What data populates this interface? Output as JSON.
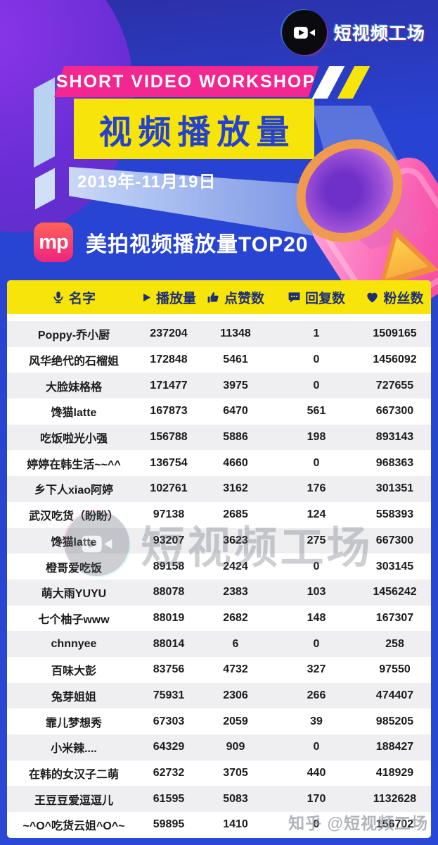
{
  "brand": {
    "name": "短视频工场",
    "logo_icon": "video-camera-icon"
  },
  "header": {
    "banner": "SHORT VIDEO WORKSHOP",
    "title": "视频播放量",
    "date": "2019年-11月19日"
  },
  "section": {
    "logo_text": "mp",
    "title": "美拍视频播放量TOP20"
  },
  "colors": {
    "background_blue": "#2746d0",
    "banner_pink": "#f2278f",
    "accent_yellow": "#f7e408",
    "title_blue": "#2442cb",
    "header_navy": "#1d2e78",
    "row_stripe": "#efeff1",
    "mp_gradient_top": "#ff6257",
    "mp_gradient_bottom": "#ef2480"
  },
  "chart_data": {
    "type": "table",
    "title": "美拍视频播放量TOP20",
    "date": "2019年-11月19日",
    "columns": [
      "名字",
      "播放量",
      "点赞数",
      "回复数",
      "粉丝数"
    ],
    "column_icons": [
      "microphone-icon",
      "play-icon",
      "thumbs-up-icon",
      "comment-icon",
      "heart-icon"
    ],
    "rows": [
      [
        "Poppy-乔小厨",
        237204,
        11348,
        1,
        1509165
      ],
      [
        "风华绝代的石榴姐",
        172848,
        5461,
        0,
        1456092
      ],
      [
        "大脸妹格格",
        171477,
        3975,
        0,
        727655
      ],
      [
        "馋猫latte",
        167873,
        6470,
        561,
        667300
      ],
      [
        "吃饭啦光小强",
        156788,
        5886,
        198,
        893143
      ],
      [
        "婷婷在韩生活~~^^",
        136754,
        4660,
        0,
        968363
      ],
      [
        "乡下人xiao阿婷",
        102761,
        3162,
        176,
        301351
      ],
      [
        "武汉吃货（盼盼）",
        97138,
        2685,
        124,
        558393
      ],
      [
        "馋猫latte",
        93207,
        3623,
        275,
        667300
      ],
      [
        "橙哥爱吃饭",
        89158,
        2424,
        0,
        303145
      ],
      [
        "萌大雨YUYU",
        88078,
        2383,
        103,
        1456242
      ],
      [
        "七个柚子www",
        88019,
        2682,
        148,
        167307
      ],
      [
        "chnnyee",
        88014,
        6,
        0,
        258
      ],
      [
        "百味大彭",
        83756,
        4732,
        327,
        97550
      ],
      [
        "兔芽姐姐",
        75931,
        2306,
        266,
        474407
      ],
      [
        "霏儿梦想秀",
        67303,
        2059,
        39,
        985205
      ],
      [
        "小米辣....",
        64329,
        909,
        0,
        188427
      ],
      [
        "在韩的女汉子二萌",
        62732,
        3705,
        440,
        418929
      ],
      [
        "王豆豆爱逗逗儿",
        61595,
        5083,
        170,
        1132628
      ],
      [
        "~^O^吃货云姐^O^~",
        59895,
        1410,
        0,
        156702
      ]
    ]
  },
  "watermarks": {
    "center": "短视频工场",
    "bottom_right": "知乎 @短视频工场"
  }
}
